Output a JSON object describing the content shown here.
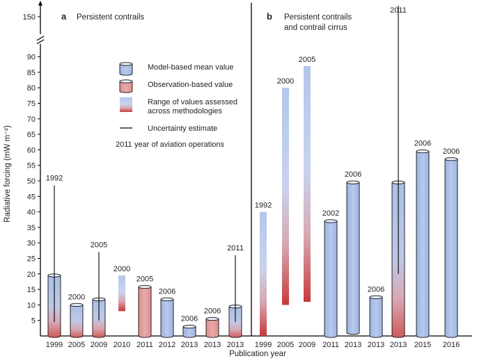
{
  "chart_data": {
    "type": "bar",
    "ylabel": "Radiative forcing (mW m⁻²)",
    "xlabel": "Publication year",
    "ylim": [
      0,
      90
    ],
    "yticks": [
      5,
      10,
      15,
      20,
      25,
      30,
      35,
      40,
      45,
      50,
      55,
      60,
      65,
      70,
      75,
      80,
      85,
      90
    ],
    "ybreak_tick": 150,
    "colors": {
      "model": "#a9bfe6",
      "observation": "#e6a0a0",
      "red": "#c83a3a",
      "blue_light": "#c5d4ef"
    },
    "panels": [
      {
        "letter": "a",
        "title": "Persistent contrails",
        "bars": [
          {
            "pub_year": "1999",
            "kind": "model_obs",
            "value": 19.5,
            "ops_year": "1992",
            "unc_low": 4.5,
            "unc_high": 48.5
          },
          {
            "pub_year": "2005",
            "kind": "model_obs",
            "value": 10,
            "ops_year": "2000"
          },
          {
            "pub_year": "2009",
            "kind": "model_obs",
            "value": 11.8,
            "ops_year": "2005",
            "unc_low": 5,
            "unc_high": 27
          },
          {
            "pub_year": "2010",
            "kind": "range",
            "low": 8,
            "high": 19.5,
            "ops_year": "2000"
          },
          {
            "pub_year": "2011",
            "kind": "observation",
            "value": 15.8,
            "ops_year": "2005"
          },
          {
            "pub_year": "2012",
            "kind": "model",
            "value": 11.8,
            "ops_year": "2006"
          },
          {
            "pub_year": "2013",
            "kind": "model",
            "value": 3,
            "ops_year": "2006"
          },
          {
            "pub_year": "2013",
            "kind": "observation",
            "value": 5.5,
            "ops_year": "2006"
          },
          {
            "pub_year": "2013",
            "kind": "model_obs",
            "value": 9.5,
            "ops_year": "2011",
            "unc_low": 4.5,
            "unc_high": 26
          }
        ]
      },
      {
        "letter": "b",
        "title_lines": [
          "Persistent contrails",
          "and contrail cirrus"
        ],
        "bars": [
          {
            "pub_year": "1999",
            "kind": "range",
            "low": 0,
            "high": 40,
            "ops_year": "1992"
          },
          {
            "pub_year": "2005",
            "kind": "range",
            "low": 10,
            "high": 80,
            "ops_year": "2000"
          },
          {
            "pub_year": "2009",
            "kind": "range",
            "low": 11,
            "high": 87,
            "ops_year": "2005"
          },
          {
            "pub_year": "2011",
            "kind": "model",
            "value": 37,
            "ops_year": "2002"
          },
          {
            "pub_year": "2013",
            "kind": "model",
            "value": 49.5,
            "low": 1,
            "ops_year": "2006"
          },
          {
            "pub_year": "2013",
            "kind": "model",
            "value": 12.5,
            "ops_year": "2006"
          },
          {
            "pub_year": "2013",
            "kind": "model_obs",
            "value": 49.5,
            "ops_year": "2011",
            "unc_low": 20,
            "unc_high": 150
          },
          {
            "pub_year": "2015",
            "kind": "model",
            "value": 59.5,
            "ops_year": "2006"
          },
          {
            "pub_year": "2016",
            "kind": "model",
            "value": 57,
            "ops_year": "2006"
          }
        ]
      }
    ],
    "legend": {
      "model": "Model-based mean value",
      "observation": "Observation-based value",
      "range_lines": [
        "Range of values assessed",
        "across methodologies"
      ],
      "uncertainty": "Uncertainty estimate",
      "ops_example_year": "2011",
      "ops_example_text": "year of aviation operations"
    }
  }
}
